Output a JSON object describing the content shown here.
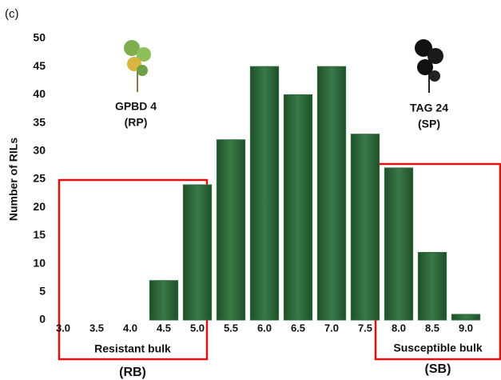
{
  "chart_data": {
    "type": "bar",
    "panel_label": "(c)",
    "y_label": "Number of RILs",
    "categories": [
      "3.0",
      "3.5",
      "4.0",
      "4.5",
      "5.0",
      "5.5",
      "6.0",
      "6.5",
      "7.0",
      "7.5",
      "8.0",
      "8.5",
      "9.0"
    ],
    "values": [
      0,
      0,
      0,
      7,
      24,
      32,
      45,
      40,
      45,
      33,
      27,
      12,
      1
    ],
    "color": "#2f6b3b",
    "ylim": [
      0,
      50
    ],
    "yticks": [
      0,
      5,
      10,
      15,
      20,
      25,
      30,
      35,
      40,
      45,
      50
    ],
    "grid": false,
    "annotations": {
      "resistant_parent": "GPBD 4",
      "resistant_parent_tag": "(RP)",
      "susceptible_parent": "TAG 24",
      "susceptible_parent_tag": "(SP)",
      "resistant_bulk": "Resistant bulk",
      "resistant_bulk_tag": "(RB)",
      "susceptible_bulk": "Susceptible bulk",
      "susceptible_bulk_tag": "(SB)"
    }
  }
}
